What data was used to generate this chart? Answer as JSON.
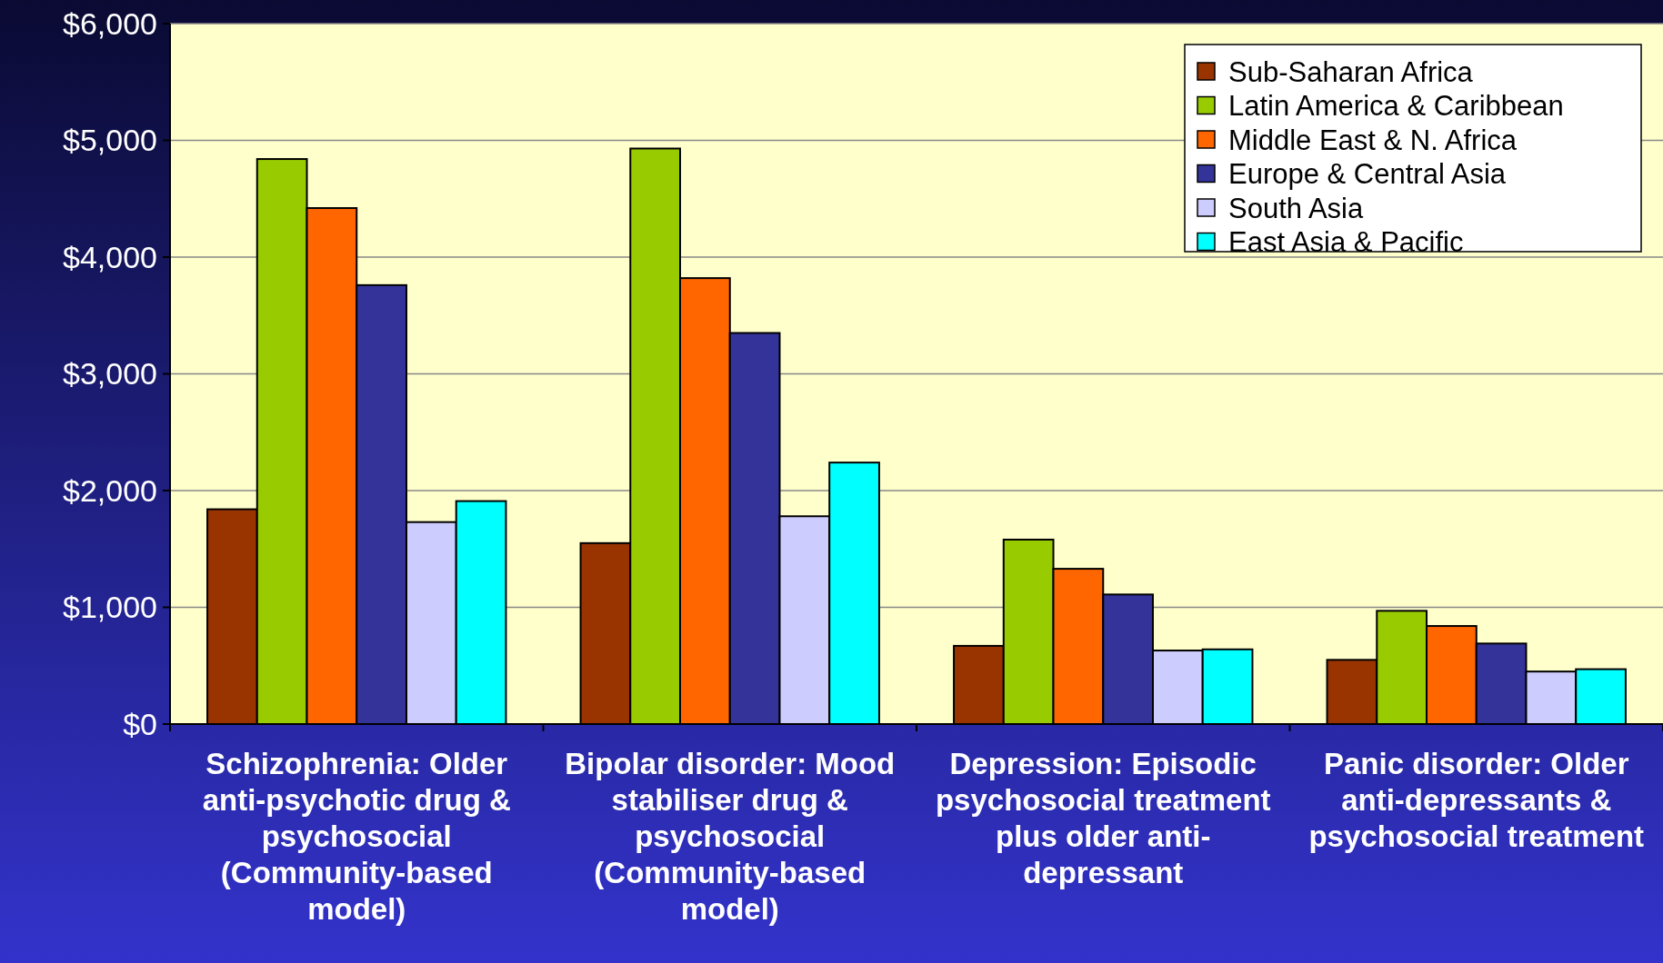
{
  "chart_data": {
    "type": "bar",
    "categories": [
      "Schizophrenia: Older anti-psychotic drug & psychosocial (Community-based model)",
      "Bipolar disorder: Mood stabiliser drug & psychosocial (Community-based model)",
      "Depression: Episodic psychosocial treatment plus older anti-depressant",
      "Panic disorder: Older anti-depressants & psychosocial treatment"
    ],
    "series": [
      {
        "name": "Sub-Saharan Africa",
        "color": "#993300",
        "values": [
          1840,
          1550,
          670,
          550
        ]
      },
      {
        "name": "Latin America & Caribbean",
        "color": "#99cc00",
        "values": [
          4840,
          4930,
          1580,
          970
        ]
      },
      {
        "name": "Middle East & N. Africa",
        "color": "#ff6600",
        "values": [
          4420,
          3820,
          1330,
          840
        ]
      },
      {
        "name": "Europe & Central Asia",
        "color": "#333399",
        "values": [
          3760,
          3350,
          1110,
          690
        ]
      },
      {
        "name": "South Asia",
        "color": "#ccccff",
        "values": [
          1730,
          1780,
          630,
          450
        ]
      },
      {
        "name": "East Asia & Pacific",
        "color": "#00ffff",
        "values": [
          1910,
          2240,
          640,
          470
        ]
      }
    ],
    "ylim": [
      0,
      6000
    ],
    "yticks": [
      {
        "value": 0,
        "label": "$0"
      },
      {
        "value": 1000,
        "label": "$1,000"
      },
      {
        "value": 2000,
        "label": "$2,000"
      },
      {
        "value": 3000,
        "label": "$3,000"
      },
      {
        "value": 4000,
        "label": "$4,000"
      },
      {
        "value": 5000,
        "label": "$5,000"
      },
      {
        "value": 6000,
        "label": "$6,000"
      }
    ],
    "grid": "y",
    "legend": "top right"
  }
}
